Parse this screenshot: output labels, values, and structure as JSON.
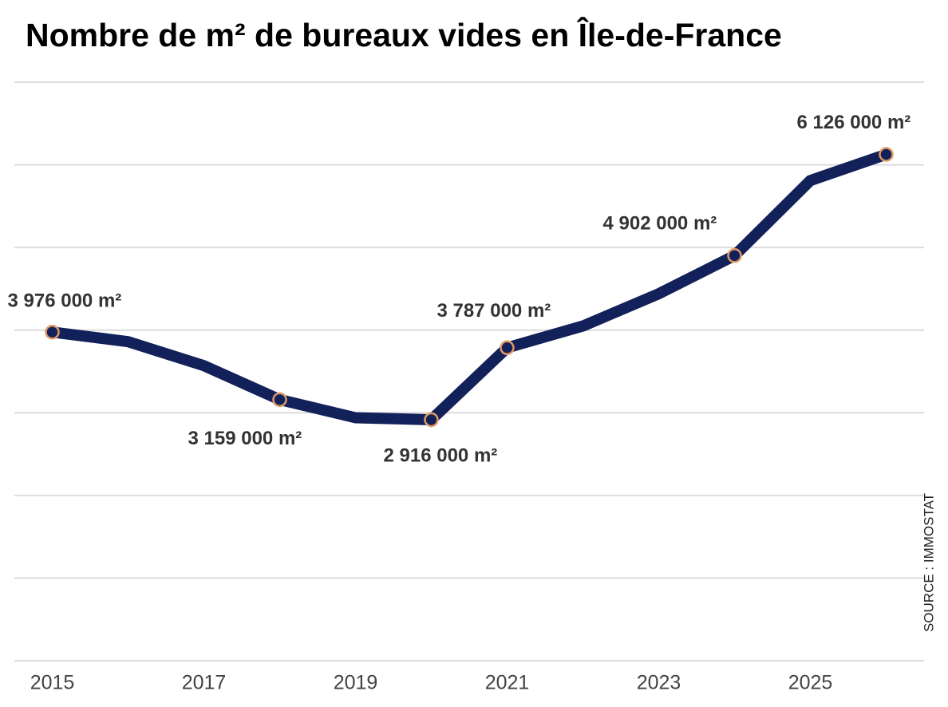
{
  "chart_data": {
    "type": "line",
    "title": "Nombre de m² de bureaux vides en Île-de-France",
    "source": "SOURCE : IMMOSTAT",
    "x": [
      2015,
      2016,
      2017,
      2018,
      2019,
      2020,
      2021,
      2022,
      2023,
      2024,
      2025,
      2026
    ],
    "values": [
      3976000,
      3860000,
      3570000,
      3159000,
      2940000,
      2916000,
      3787000,
      4050000,
      4440000,
      4902000,
      5810000,
      6126000
    ],
    "value_labels": [
      "3 976 000 m²",
      null,
      null,
      "3 159 000 m²",
      null,
      "2 916 000 m²",
      "3 787 000 m²",
      null,
      null,
      "4 902 000 m²",
      null,
      "6 126 000 m²"
    ],
    "color": "#13215a",
    "marker_edge_color": "#e09a63",
    "xlim": [
      2014.5,
      2026.5
    ],
    "xticks": [
      2015,
      2017,
      2019,
      2021,
      2023,
      2025
    ],
    "ylim": [
      0,
      7000000
    ],
    "yticks": [
      0,
      1000000,
      2000000,
      3000000,
      4000000,
      5000000,
      6000000,
      7000000
    ],
    "ytick_labels": false,
    "grid": true
  }
}
